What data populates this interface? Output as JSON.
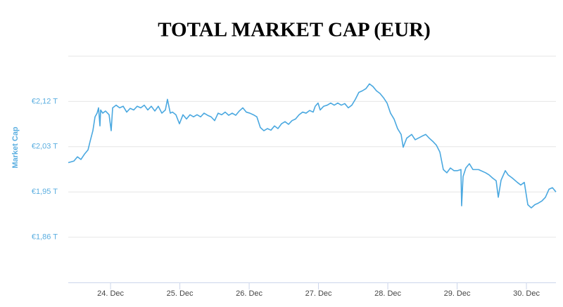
{
  "chart_data": {
    "type": "line",
    "title": "TOTAL MARKET CAP (EUR)",
    "y_label": "Market Cap",
    "color": "#4aa8e0",
    "grid": true,
    "xlim": [
      23.39,
      30.426
    ],
    "xticks": [
      {
        "value": 24,
        "label": "24. Dec"
      },
      {
        "value": 25,
        "label": "25. Dec"
      },
      {
        "value": 26,
        "label": "26. Dec"
      },
      {
        "value": 27,
        "label": "27. Dec"
      },
      {
        "value": 28,
        "label": "28. Dec"
      },
      {
        "value": 29,
        "label": "29. Dec"
      },
      {
        "value": 30,
        "label": "30. Dec"
      }
    ],
    "ylim": [
      1.775,
      2.2
    ],
    "yticks": [
      {
        "value": 1.86,
        "label": "€1,86 T"
      },
      {
        "value": 1.945,
        "label": "€1,95 T"
      },
      {
        "value": 2.03,
        "label": "€2,03 T"
      },
      {
        "value": 2.115,
        "label": "€2,12 T"
      }
    ],
    "x": [
      23.39,
      23.471,
      23.522,
      23.573,
      23.624,
      23.675,
      23.705,
      23.745,
      23.776,
      23.806,
      23.827,
      23.847,
      23.857,
      23.887,
      23.928,
      23.979,
      24.009,
      24.03,
      24.08,
      24.131,
      24.182,
      24.233,
      24.283,
      24.334,
      24.385,
      24.436,
      24.486,
      24.537,
      24.588,
      24.639,
      24.689,
      24.74,
      24.791,
      24.821,
      24.862,
      24.893,
      24.943,
      24.994,
      25.045,
      25.096,
      25.146,
      25.197,
      25.248,
      25.299,
      25.349,
      25.4,
      25.451,
      25.502,
      25.552,
      25.603,
      25.654,
      25.705,
      25.755,
      25.806,
      25.857,
      25.908,
      25.958,
      26.009,
      26.06,
      26.111,
      26.161,
      26.212,
      26.263,
      26.314,
      26.365,
      26.415,
      26.466,
      26.517,
      26.568,
      26.618,
      26.669,
      26.72,
      26.771,
      26.821,
      26.872,
      26.923,
      26.953,
      26.994,
      27.024,
      27.075,
      27.126,
      27.176,
      27.227,
      27.278,
      27.329,
      27.379,
      27.43,
      27.481,
      27.532,
      27.582,
      27.633,
      27.684,
      27.735,
      27.786,
      27.836,
      27.887,
      27.938,
      27.989,
      28.039,
      28.09,
      28.141,
      28.192,
      28.222,
      28.273,
      28.344,
      28.395,
      28.497,
      28.547,
      28.598,
      28.649,
      28.7,
      28.751,
      28.801,
      28.852,
      28.903,
      28.954,
      29.005,
      29.055,
      29.065,
      29.086,
      29.126,
      29.177,
      29.228,
      29.309,
      29.411,
      29.461,
      29.512,
      29.563,
      29.594,
      29.634,
      29.695,
      29.736,
      29.797,
      29.868,
      29.918,
      29.969,
      30.02,
      30.07,
      30.121,
      30.172,
      30.223,
      30.274,
      30.325,
      30.375,
      30.426
    ],
    "values": [
      2.0,
      2.003,
      2.011,
      2.006,
      2.016,
      2.024,
      2.04,
      2.06,
      2.086,
      2.093,
      2.103,
      2.069,
      2.099,
      2.093,
      2.097,
      2.09,
      2.06,
      2.103,
      2.108,
      2.103,
      2.106,
      2.095,
      2.102,
      2.099,
      2.106,
      2.103,
      2.108,
      2.099,
      2.106,
      2.097,
      2.106,
      2.093,
      2.099,
      2.119,
      2.093,
      2.095,
      2.09,
      2.073,
      2.09,
      2.082,
      2.09,
      2.086,
      2.09,
      2.086,
      2.093,
      2.089,
      2.086,
      2.079,
      2.093,
      2.09,
      2.095,
      2.089,
      2.093,
      2.089,
      2.097,
      2.103,
      2.095,
      2.093,
      2.09,
      2.086,
      2.066,
      2.06,
      2.064,
      2.061,
      2.069,
      2.064,
      2.073,
      2.077,
      2.072,
      2.079,
      2.082,
      2.09,
      2.095,
      2.093,
      2.098,
      2.095,
      2.106,
      2.112,
      2.099,
      2.106,
      2.108,
      2.112,
      2.108,
      2.112,
      2.108,
      2.111,
      2.103,
      2.108,
      2.119,
      2.132,
      2.135,
      2.139,
      2.148,
      2.143,
      2.135,
      2.13,
      2.122,
      2.112,
      2.093,
      2.082,
      2.064,
      2.053,
      2.029,
      2.046,
      2.053,
      2.043,
      2.05,
      2.053,
      2.046,
      2.04,
      2.033,
      2.02,
      1.987,
      1.981,
      1.99,
      1.985,
      1.985,
      1.987,
      1.919,
      1.974,
      1.99,
      1.998,
      1.987,
      1.987,
      1.981,
      1.977,
      1.971,
      1.966,
      1.935,
      1.967,
      1.985,
      1.977,
      1.971,
      1.963,
      1.958,
      1.963,
      1.921,
      1.915,
      1.921,
      1.924,
      1.928,
      1.935,
      1.95,
      1.953,
      1.945
    ]
  }
}
